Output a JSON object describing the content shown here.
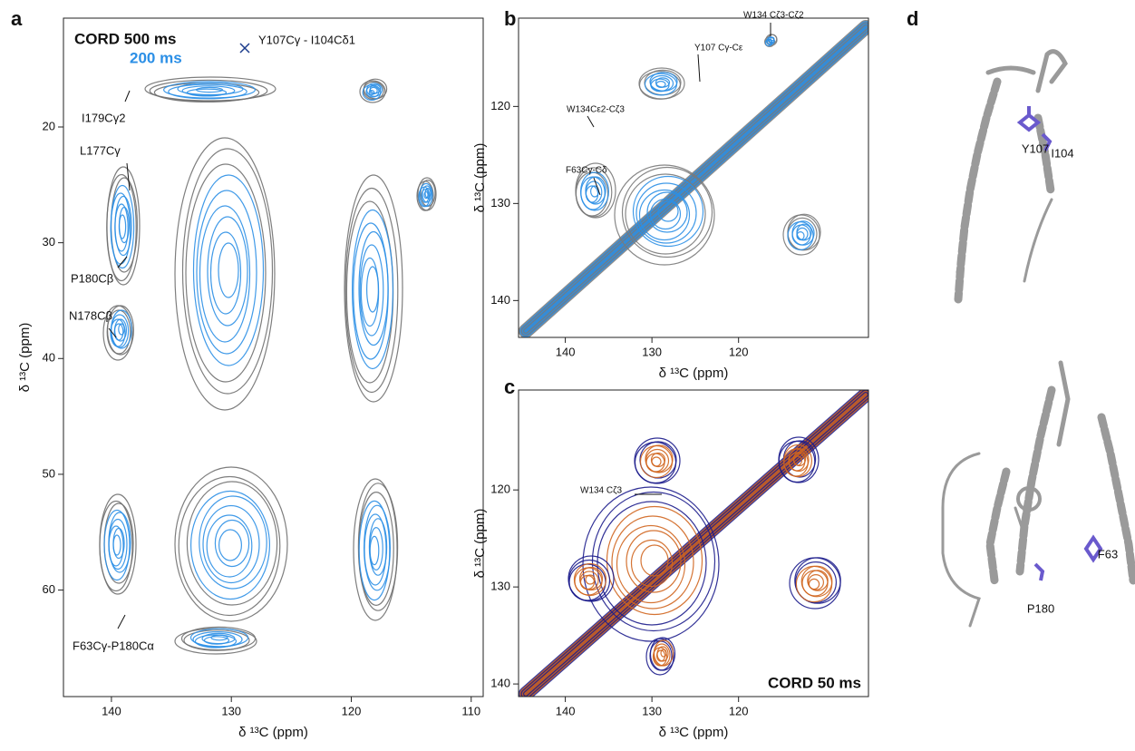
{
  "panels": [
    {
      "label": "a",
      "legend": [
        "CORD 500 ms",
        "200 ms"
      ],
      "xlabel": "δ ¹³C (ppm)",
      "ylabel": "δ ¹³C (ppm)",
      "xlim": [
        144,
        109
      ],
      "ylim": [
        10.6,
        69.2
      ],
      "xticks": [
        140,
        130,
        120,
        110
      ],
      "yticks": [
        20,
        30,
        40,
        50,
        60
      ],
      "annotations": [
        "Y107Cγ - I104Cδ1",
        "I179Cγ2",
        "L177Cγ",
        "P180Cβ",
        "N178Cβ",
        "F63Cγ-P180Cα"
      ]
    },
    {
      "label": "b",
      "xlabel": "δ ¹³C (ppm)",
      "ylabel": "δ ¹³C (ppm)",
      "xlim": [
        145.4,
        105
      ],
      "ylim": [
        110.9,
        143.8
      ],
      "xticks": [
        140,
        130,
        120
      ],
      "yticks": [
        120,
        130,
        140
      ],
      "annotations": [
        "W134 Cζ3-Cζ2",
        "Y107 Cγ-Cε",
        "W134Cε2-Cζ3",
        "F63Cγ-Cδ"
      ]
    },
    {
      "label": "c",
      "legend": [
        "CORD 50 ms"
      ],
      "xlabel": "δ ¹³C (ppm)",
      "ylabel": "δ ¹³C (ppm)",
      "xlim": [
        145.4,
        105
      ],
      "ylim": [
        109.7,
        141.3
      ],
      "xticks": [
        140,
        130,
        120
      ],
      "yticks": [
        120,
        130,
        140
      ],
      "annotations": [
        "W134 Cζ3"
      ]
    }
  ],
  "structures": {
    "label": "d",
    "residues": [
      "Y107",
      "I104",
      "P180",
      "F63"
    ]
  }
}
